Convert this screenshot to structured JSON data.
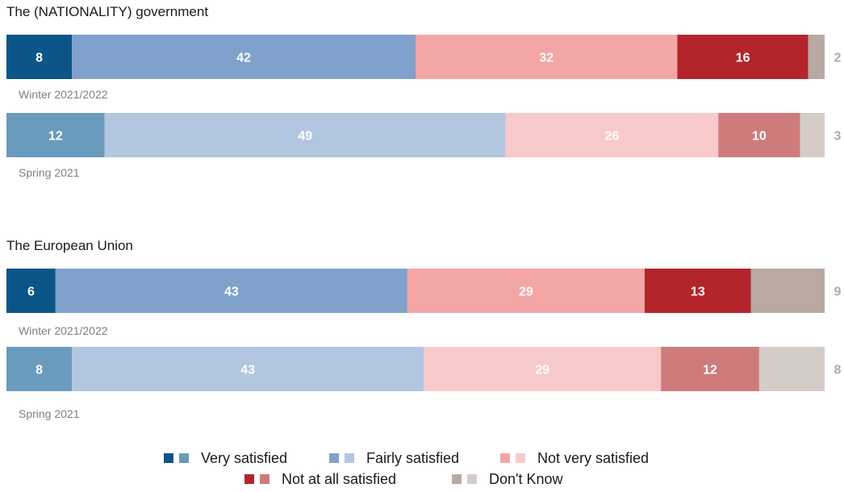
{
  "chart_data": {
    "type": "bar",
    "orientation": "horizontal",
    "stacked": true,
    "unit": "%",
    "categories": [
      "Very satisfied",
      "Fairly satisfied",
      "Not very satisfied",
      "Not at all satisfied",
      "Don't Know"
    ],
    "panels": [
      {
        "title": "The (NATIONALITY) government",
        "bars": [
          {
            "period": "Winter 2021/2022",
            "values": [
              8,
              42,
              32,
              16,
              2
            ]
          },
          {
            "period": "Spring 2021",
            "values": [
              12,
              49,
              26,
              10,
              3
            ]
          }
        ]
      },
      {
        "title": "The European Union",
        "bars": [
          {
            "period": "Winter 2021/2022",
            "values": [
              6,
              43,
              29,
              13,
              9
            ]
          },
          {
            "period": "Spring 2021",
            "values": [
              8,
              43,
              29,
              12,
              8
            ]
          }
        ]
      }
    ],
    "colors": {
      "current": [
        "#0b5588",
        "#7fa1cb",
        "#f3a6a5",
        "#b3242b",
        "#b8aaa2"
      ],
      "previous": [
        "#6a9bbd",
        "#b2c6e0",
        "#f8c9ca",
        "#cf7b7c",
        "#d6ccc7"
      ]
    },
    "legend": {
      "position": "bottom",
      "items": [
        "Very satisfied",
        "Fairly satisfied",
        "Not very satisfied",
        "Not at all satisfied",
        "Don't Know"
      ]
    }
  }
}
